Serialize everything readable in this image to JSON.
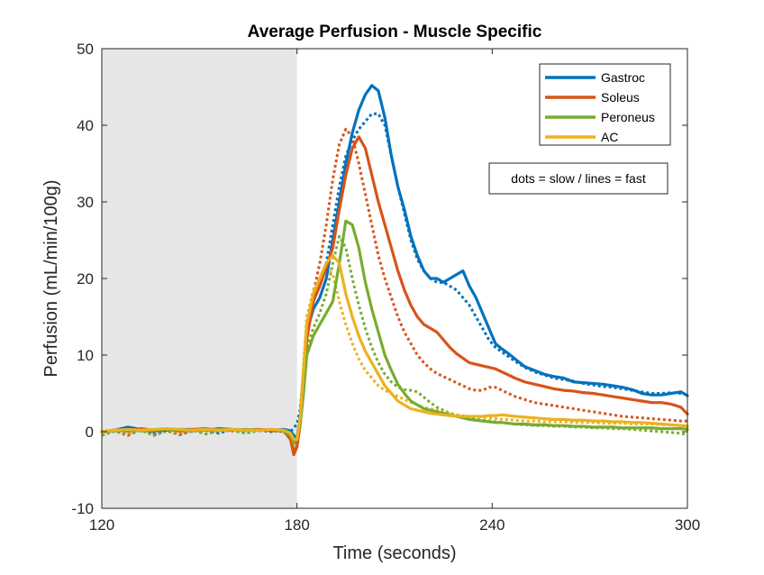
{
  "chart_data": {
    "type": "line",
    "title": "Average Perfusion - Muscle Specific",
    "xlabel": "Time (seconds)",
    "ylabel": "Perfusion (mL/min/100g)",
    "xlim": [
      120,
      300
    ],
    "ylim": [
      -10,
      50
    ],
    "xticks": [
      120,
      180,
      240,
      300
    ],
    "yticks": [
      -10,
      0,
      10,
      20,
      30,
      40,
      50
    ],
    "shaded_region": {
      "x_start": 120,
      "x_end": 180,
      "color": "#e6e6e6"
    },
    "legend_position": "top-right",
    "annotation": "dots = slow / lines = fast",
    "series": [
      {
        "name": "Gastroc",
        "color": "#0072bd",
        "style": "fast",
        "x": [
          120,
          124,
          128,
          132,
          136,
          140,
          144,
          148,
          152,
          156,
          160,
          164,
          168,
          172,
          176,
          178,
          179,
          180,
          181,
          182,
          183,
          185,
          187,
          189,
          191,
          193,
          195,
          197,
          199,
          201,
          203,
          205,
          207,
          209,
          211,
          213,
          215,
          217,
          219,
          221,
          223,
          225,
          227,
          229,
          231,
          233,
          235,
          237,
          239,
          241,
          243,
          245,
          247,
          250,
          253,
          256,
          259,
          262,
          265,
          268,
          271,
          274,
          277,
          280,
          283,
          286,
          289,
          292,
          295,
          298,
          300
        ],
        "values": [
          0.0,
          0.2,
          0.6,
          0.3,
          0.1,
          0.2,
          0.3,
          0.3,
          0.2,
          0.4,
          0.3,
          0.2,
          0.3,
          0.2,
          0.3,
          0.1,
          -0.5,
          -0.8,
          2,
          7,
          13,
          16,
          17.5,
          20,
          25,
          30,
          35,
          39,
          42,
          44,
          45.2,
          44.5,
          41,
          36,
          32,
          29,
          25.5,
          23,
          21,
          20,
          20,
          19.5,
          20,
          20.5,
          21,
          19,
          17.5,
          15.5,
          13.5,
          11.5,
          10.8,
          10.2,
          9.5,
          8.5,
          8,
          7.5,
          7.2,
          7,
          6.5,
          6.4,
          6.3,
          6.2,
          6,
          5.8,
          5.5,
          5,
          4.8,
          4.8,
          5,
          5.2,
          4.7
        ]
      },
      {
        "name": "Soleus",
        "color": "#d95319",
        "style": "fast",
        "x": [
          120,
          124,
          128,
          132,
          136,
          140,
          144,
          148,
          152,
          156,
          160,
          164,
          168,
          172,
          176,
          178,
          179,
          180,
          181,
          182,
          183,
          185,
          187,
          189,
          191,
          193,
          195,
          197,
          199,
          201,
          203,
          205,
          207,
          209,
          211,
          213,
          215,
          217,
          219,
          221,
          223,
          225,
          227,
          229,
          231,
          233,
          235,
          237,
          239,
          241,
          243,
          245,
          247,
          250,
          253,
          256,
          259,
          262,
          265,
          268,
          271,
          274,
          277,
          280,
          283,
          286,
          289,
          292,
          295,
          298,
          300
        ],
        "values": [
          0.0,
          0.2,
          0.1,
          0.4,
          0.2,
          0.3,
          0.1,
          0.3,
          0.4,
          0.2,
          0.3,
          0.2,
          0.3,
          0.2,
          0.1,
          -1,
          -3,
          -2,
          1,
          6,
          12,
          17,
          19,
          21.5,
          24,
          29,
          33.5,
          37,
          38.5,
          37,
          33.5,
          30,
          27,
          24,
          21,
          18.5,
          16.5,
          15,
          14,
          13.5,
          13,
          12,
          11,
          10.2,
          9.6,
          9,
          8.8,
          8.6,
          8.4,
          8.2,
          7.8,
          7.4,
          7,
          6.5,
          6.2,
          5.9,
          5.6,
          5.4,
          5.3,
          5.1,
          5,
          4.8,
          4.6,
          4.4,
          4.2,
          4,
          3.8,
          3.8,
          3.6,
          3.2,
          2.3
        ]
      },
      {
        "name": "Peroneus",
        "color": "#77ac30",
        "style": "fast",
        "x": [
          120,
          124,
          128,
          132,
          136,
          140,
          144,
          148,
          152,
          156,
          160,
          164,
          168,
          172,
          176,
          178,
          179,
          180,
          181,
          182,
          183,
          185,
          187,
          189,
          191,
          193,
          195,
          197,
          199,
          201,
          203,
          205,
          207,
          209,
          211,
          213,
          215,
          217,
          219,
          221,
          223,
          225,
          227,
          229,
          231,
          233,
          235,
          237,
          239,
          241,
          243,
          245,
          247,
          250,
          253,
          256,
          259,
          262,
          265,
          268,
          271,
          274,
          277,
          280,
          283,
          286,
          289,
          292,
          295,
          298,
          300
        ],
        "values": [
          0.0,
          0.1,
          0.2,
          0.1,
          0.2,
          0.3,
          0.2,
          0.1,
          0.2,
          0.3,
          0.2,
          0.3,
          0.2,
          0.3,
          0.1,
          -0.5,
          -1.5,
          -1,
          1,
          5,
          10,
          12.5,
          14,
          15.5,
          17,
          22,
          27.5,
          27,
          24,
          19.5,
          16,
          13,
          10,
          8,
          6.2,
          5,
          4,
          3.5,
          3,
          2.8,
          2.6,
          2.4,
          2.2,
          2,
          1.8,
          1.6,
          1.5,
          1.4,
          1.3,
          1.2,
          1.2,
          1.1,
          1,
          1,
          0.9,
          0.9,
          0.8,
          0.8,
          0.7,
          0.7,
          0.6,
          0.6,
          0.6,
          0.5,
          0.5,
          0.5,
          0.5,
          0.4,
          0.4,
          0.4,
          0.3
        ]
      },
      {
        "name": "AC",
        "color": "#edb120",
        "style": "fast",
        "x": [
          120,
          124,
          128,
          132,
          136,
          140,
          144,
          148,
          152,
          156,
          160,
          164,
          168,
          172,
          176,
          178,
          179,
          180,
          181,
          182,
          183,
          185,
          187,
          189,
          191,
          193,
          195,
          197,
          199,
          201,
          203,
          205,
          207,
          209,
          211,
          213,
          215,
          217,
          219,
          221,
          223,
          225,
          227,
          229,
          231,
          233,
          235,
          237,
          239,
          241,
          243,
          245,
          247,
          250,
          253,
          256,
          259,
          262,
          265,
          268,
          271,
          274,
          277,
          280,
          283,
          286,
          289,
          292,
          295,
          298,
          300
        ],
        "values": [
          0.0,
          0.2,
          0.3,
          0.2,
          0.3,
          0.4,
          0.3,
          0.2,
          0.3,
          0.2,
          0.3,
          0.2,
          0.2,
          0.3,
          0.2,
          -0.2,
          -1,
          -1,
          2,
          8,
          14,
          18,
          20,
          22,
          23,
          22,
          18,
          15,
          12.5,
          10.5,
          9,
          7.5,
          6,
          5,
          4,
          3.5,
          3,
          2.8,
          2.6,
          2.4,
          2.3,
          2.2,
          2.1,
          2,
          2,
          2,
          2,
          2,
          2.1,
          2.1,
          2.2,
          2.1,
          2,
          1.9,
          1.8,
          1.7,
          1.6,
          1.6,
          1.5,
          1.5,
          1.4,
          1.4,
          1.3,
          1.3,
          1.2,
          1.2,
          1.1,
          1,
          0.9,
          0.8,
          0.7
        ]
      },
      {
        "name": "Gastroc",
        "color": "#0072bd",
        "style": "slow",
        "x": [
          120,
          124,
          128,
          132,
          136,
          140,
          144,
          148,
          152,
          156,
          160,
          164,
          168,
          172,
          176,
          178,
          179,
          180,
          181,
          182,
          183,
          185,
          187,
          189,
          191,
          193,
          195,
          197,
          199,
          201,
          203,
          205,
          207,
          209,
          211,
          213,
          215,
          217,
          219,
          221,
          223,
          225,
          227,
          229,
          231,
          233,
          235,
          237,
          239,
          241,
          243,
          245,
          247,
          250,
          253,
          256,
          259,
          262,
          265,
          268,
          271,
          274,
          277,
          280,
          283,
          286,
          289,
          292,
          295,
          298,
          300
        ],
        "values": [
          -0.3,
          0.1,
          -0.2,
          0.3,
          -0.4,
          0.2,
          -0.3,
          0.1,
          0.2,
          -0.2,
          0.3,
          0.1,
          0.2,
          0.0,
          0.2,
          0.0,
          0.5,
          1,
          3,
          8,
          14,
          17.5,
          19,
          22,
          27,
          32,
          36,
          38,
          39.5,
          40.5,
          41.5,
          41.5,
          40,
          36,
          32,
          28.5,
          25,
          22.5,
          21,
          20,
          19.5,
          19.5,
          19,
          18.5,
          17.5,
          16.5,
          15,
          13.5,
          12,
          11,
          10.4,
          9.8,
          9.2,
          8.4,
          7.8,
          7.4,
          7,
          6.8,
          6.6,
          6.3,
          6.1,
          5.9,
          5.8,
          5.6,
          5.4,
          5.2,
          5,
          5,
          5.1,
          5,
          4.8
        ]
      },
      {
        "name": "Soleus",
        "color": "#d95319",
        "style": "slow",
        "x": [
          120,
          124,
          128,
          132,
          136,
          140,
          144,
          148,
          152,
          156,
          160,
          164,
          168,
          172,
          176,
          178,
          179,
          180,
          181,
          182,
          183,
          185,
          187,
          189,
          191,
          193,
          195,
          197,
          199,
          201,
          203,
          205,
          207,
          209,
          211,
          213,
          215,
          217,
          219,
          221,
          223,
          225,
          227,
          229,
          231,
          233,
          235,
          237,
          239,
          241,
          243,
          245,
          247,
          250,
          253,
          256,
          259,
          262,
          265,
          268,
          271,
          274,
          277,
          280,
          283,
          286,
          289,
          292,
          295,
          298,
          300
        ],
        "values": [
          -0.4,
          0.1,
          -0.5,
          0.3,
          -0.2,
          0.1,
          -0.4,
          0.2,
          -0.3,
          0.2,
          0.1,
          -0.1,
          0.2,
          0.1,
          0.0,
          -1,
          -2.5,
          -1.5,
          2,
          8,
          14,
          18,
          22,
          27,
          33,
          37.5,
          39.5,
          38.5,
          35,
          31,
          27,
          23,
          20,
          17.5,
          15,
          13,
          11.5,
          10,
          9,
          8.2,
          7.6,
          7.2,
          6.8,
          6.4,
          6,
          5.6,
          5.4,
          5.4,
          5.8,
          5.8,
          5.4,
          5,
          4.6,
          4.2,
          3.8,
          3.6,
          3.4,
          3.2,
          3,
          2.8,
          2.6,
          2.4,
          2.2,
          2,
          1.9,
          1.8,
          1.7,
          1.6,
          1.5,
          1.4,
          1.4
        ]
      },
      {
        "name": "Peroneus",
        "color": "#77ac30",
        "style": "slow",
        "x": [
          120,
          124,
          128,
          132,
          136,
          140,
          144,
          148,
          152,
          156,
          160,
          164,
          168,
          172,
          176,
          178,
          179,
          180,
          181,
          182,
          183,
          185,
          187,
          189,
          191,
          193,
          195,
          197,
          199,
          201,
          203,
          205,
          207,
          209,
          211,
          213,
          215,
          217,
          219,
          221,
          223,
          225,
          227,
          229,
          231,
          233,
          235,
          237,
          239,
          241,
          243,
          245,
          247,
          250,
          253,
          256,
          259,
          262,
          265,
          268,
          271,
          274,
          277,
          280,
          283,
          286,
          289,
          292,
          295,
          298,
          300
        ],
        "values": [
          -0.5,
          0.1,
          -0.3,
          0.2,
          -0.5,
          0.1,
          -0.2,
          0.3,
          -0.3,
          0.1,
          0.2,
          -0.2,
          0.1,
          0.2,
          0.0,
          -0.8,
          -2,
          -1,
          1.5,
          6,
          11,
          13.5,
          15.5,
          18,
          22,
          25.5,
          24,
          20,
          16.5,
          13.5,
          11,
          9,
          7.5,
          6.5,
          5.8,
          5.5,
          5.4,
          5.2,
          4.5,
          3.8,
          3.2,
          2.8,
          2.4,
          2.2,
          2,
          1.8,
          1.6,
          1.5,
          1.4,
          1.3,
          1.2,
          1.1,
          1,
          0.9,
          0.8,
          0.8,
          0.7,
          0.7,
          0.6,
          0.6,
          0.5,
          0.5,
          0.4,
          0.4,
          0.3,
          0.2,
          0.1,
          0,
          -0.1,
          -0.2,
          -0.4
        ]
      },
      {
        "name": "AC",
        "color": "#edb120",
        "style": "slow",
        "x": [
          120,
          124,
          128,
          132,
          136,
          140,
          144,
          148,
          152,
          156,
          160,
          164,
          168,
          172,
          176,
          178,
          179,
          180,
          181,
          182,
          183,
          185,
          187,
          189,
          191,
          193,
          195,
          197,
          199,
          201,
          203,
          205,
          207,
          209,
          211,
          213,
          215,
          217,
          219,
          221,
          223,
          225,
          227,
          229,
          231,
          233,
          235,
          237,
          239,
          241,
          243,
          245,
          247,
          250,
          253,
          256,
          259,
          262,
          265,
          268,
          271,
          274,
          277,
          280,
          283,
          286,
          289,
          292,
          295,
          298,
          300
        ],
        "values": [
          -0.2,
          0.3,
          -0.1,
          0.4,
          0.1,
          0.3,
          -0.1,
          0.2,
          0.4,
          0.1,
          0.3,
          0.2,
          0.3,
          0.2,
          0.1,
          -0.3,
          -1.5,
          -1,
          2,
          9,
          15,
          18.5,
          20,
          21.5,
          20.5,
          17,
          14,
          11.5,
          9.5,
          8,
          7,
          6,
          5.4,
          5,
          4.6,
          4.2,
          3.8,
          3.5,
          3.2,
          3,
          2.8,
          2.6,
          2.4,
          2.2,
          2.1,
          2,
          2,
          1.9,
          1.8,
          1.7,
          1.6,
          1.6,
          1.5,
          1.4,
          1.4,
          1.3,
          1.3,
          1.3,
          1.2,
          1.2,
          1.2,
          1.1,
          1.1,
          1.1,
          1,
          1,
          1,
          0.9,
          0.9,
          0.8,
          0.8
        ]
      }
    ]
  }
}
